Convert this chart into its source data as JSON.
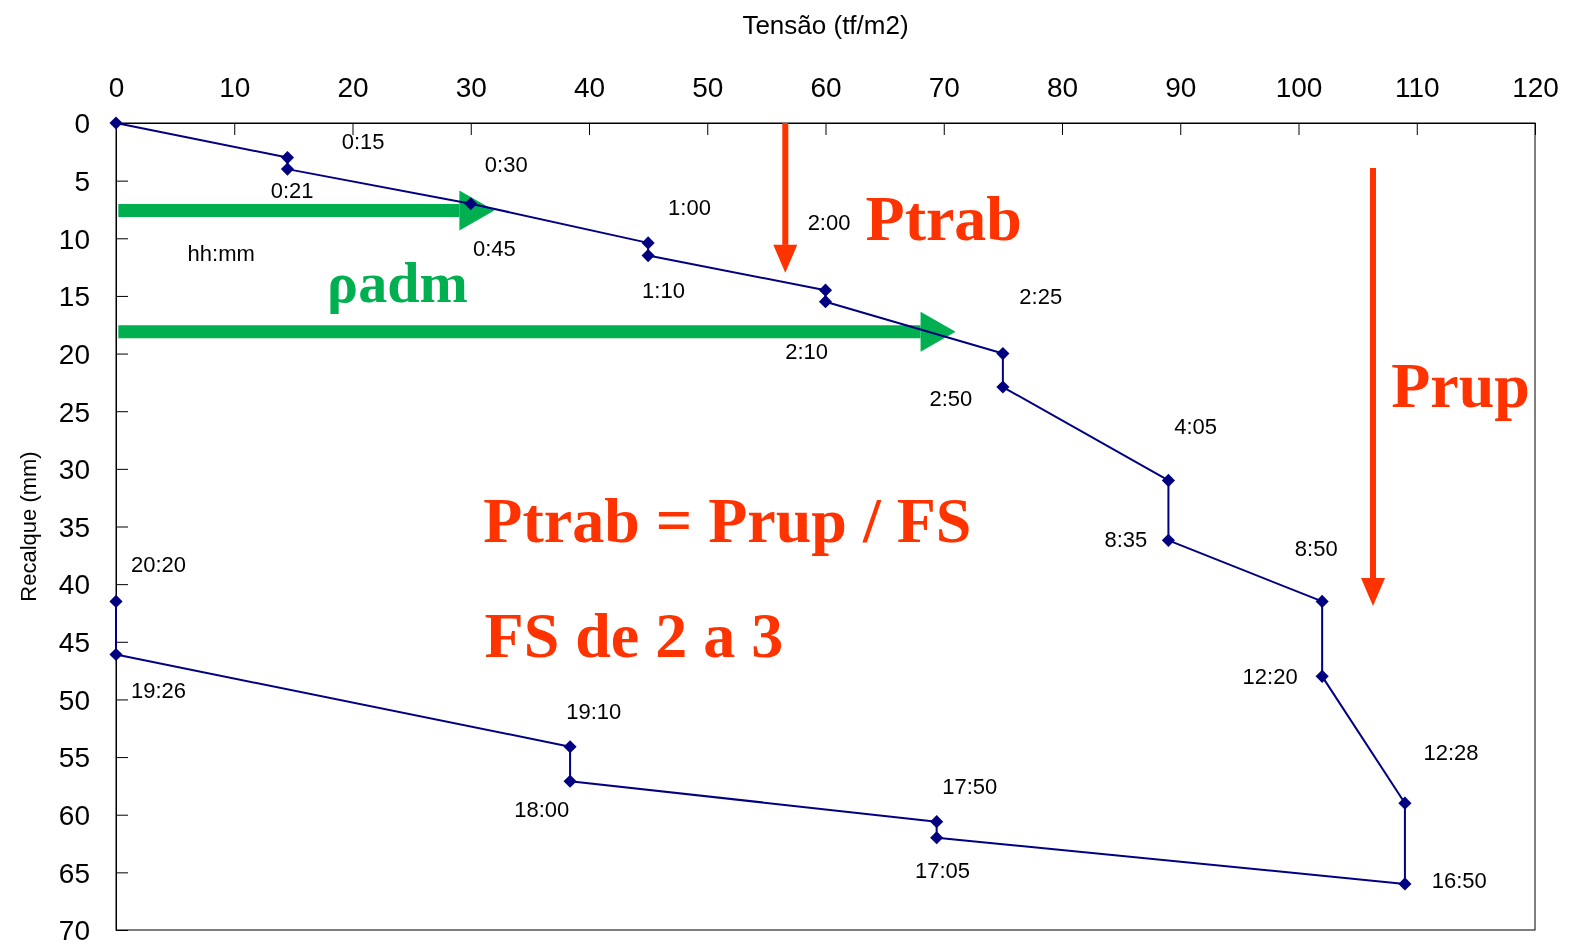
{
  "chart_data": {
    "type": "line",
    "xlabel": "Tensão (tf/m2)",
    "ylabel": "Recalque (mm)",
    "xlim": [
      0,
      120
    ],
    "xticks": [
      0,
      10,
      20,
      30,
      40,
      50,
      60,
      70,
      80,
      90,
      100,
      110,
      120
    ],
    "ylim": [
      70,
      0
    ],
    "yticks": [
      0,
      5,
      10,
      15,
      20,
      25,
      30,
      35,
      40,
      45,
      50,
      55,
      60,
      65,
      70
    ],
    "grid": false,
    "marker": "diamond",
    "line_style": "solid",
    "series": [
      {
        "color": "#000080",
        "x": [
          0,
          14.5,
          14.5,
          30,
          45,
          45,
          60,
          60,
          75,
          75,
          89,
          89,
          102,
          102,
          109,
          109,
          69.4,
          69.4,
          38.4,
          38.4,
          0,
          0
        ],
        "values": [
          0,
          3,
          4,
          7,
          10.4,
          11.5,
          14.5,
          15.5,
          20,
          22.9,
          31,
          36.2,
          41.5,
          48,
          59,
          66,
          62,
          60.6,
          57.1,
          54.1,
          46.1,
          41.5
        ]
      }
    ],
    "annotations": [
      "0:15",
      "0:21",
      "0:30",
      "0:45",
      "1:00",
      "1:10",
      "2:00",
      "2:10",
      "2:25",
      "2:50",
      "4:05",
      "8:35",
      "8:50",
      "12:20",
      "12:28",
      "16:50",
      "17:05",
      "17:50",
      "18:00",
      "19:10",
      "19:26",
      "20:20",
      "hh:mm",
      "ρadm",
      "Ptrab",
      "Prup",
      "Ptrab = Prup / FS",
      "FS de 2 a 3"
    ]
  }
}
